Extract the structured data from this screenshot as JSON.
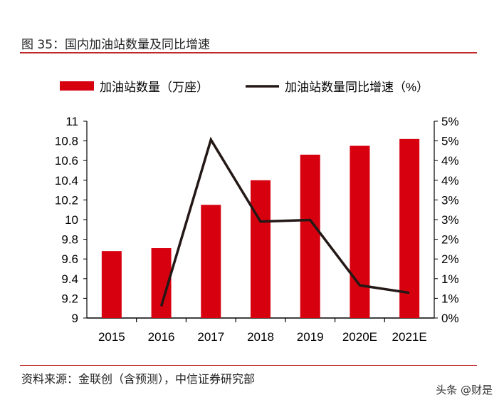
{
  "title": "图 35：国内加油站数量及同比增速",
  "source": "资料来源：金联创（含预测），中信证券研究部",
  "watermark": "头条 @财是",
  "colors": {
    "bar": "#d7000f",
    "line": "#231815",
    "rule": "#c0282d"
  },
  "chart_data": {
    "type": "bar+line",
    "categories": [
      "2015",
      "2016",
      "2017",
      "2018",
      "2019",
      "2020E",
      "2021E"
    ],
    "series": [
      {
        "name": "加油站数量（万座）",
        "type": "bar",
        "axis": "left",
        "values": [
          9.68,
          9.71,
          10.15,
          10.4,
          10.66,
          10.75,
          10.82
        ]
      },
      {
        "name": "加油站数量同比增速（%）",
        "type": "line",
        "axis": "right",
        "values": [
          null,
          0.3,
          4.53,
          2.45,
          2.49,
          0.83,
          0.64
        ]
      }
    ],
    "left_axis": {
      "ylim": [
        9,
        11
      ],
      "ticks": [
        "9",
        "9.2",
        "9.4",
        "9.6",
        "9.8",
        "10",
        "10.2",
        "10.4",
        "10.6",
        "10.8",
        "11"
      ]
    },
    "right_axis": {
      "ylim": [
        0,
        5
      ],
      "ticks": [
        "0%",
        "1%",
        "1%",
        "2%",
        "2%",
        "3%",
        "3%",
        "4%",
        "4%",
        "5%",
        "5%"
      ]
    },
    "legend": "top",
    "grid": false
  }
}
